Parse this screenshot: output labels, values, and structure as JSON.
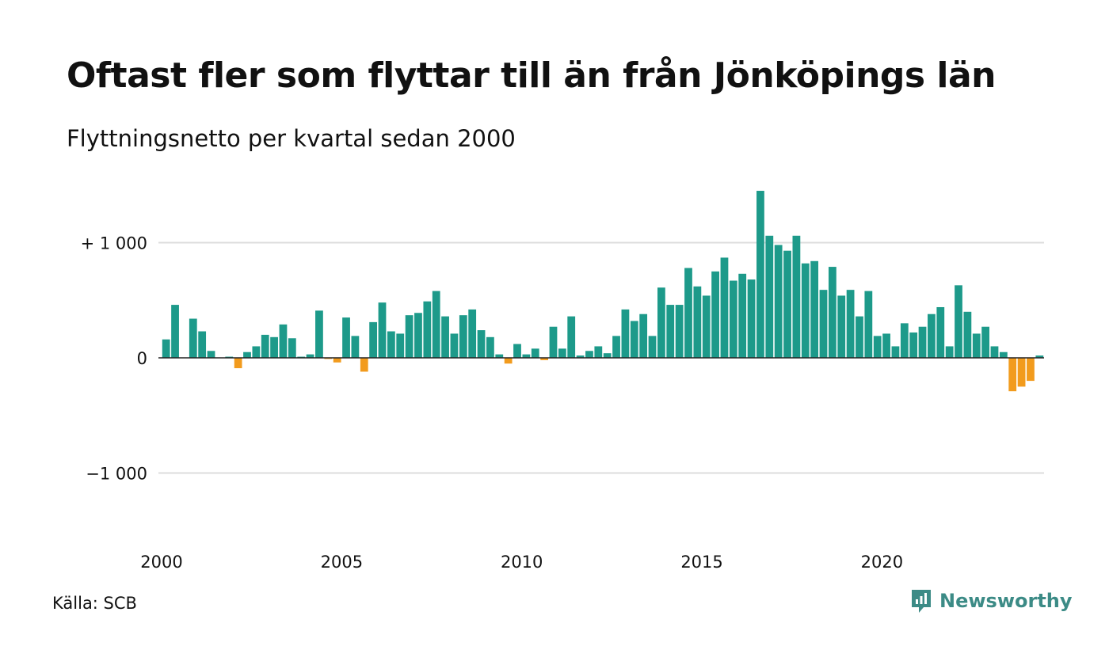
{
  "title": "Oftast fler som flyttar till än från Jönköpings län",
  "subtitle": "Flyttningsnetto per kvartal sedan 2000",
  "source": "Källa: SCB",
  "brand": "Newsworthy",
  "colors": {
    "positive": "#1d9a8a",
    "negative": "#f29b1d",
    "grid": "#dddddd",
    "axis": "#222222",
    "brand": "#3c8b86"
  },
  "chart_data": {
    "type": "bar",
    "x_start": 2000,
    "periods_per_year": 4,
    "ylim": [
      -1600,
      1500
    ],
    "yticks": [
      {
        "value": 1000,
        "label": "+ 1 000"
      },
      {
        "value": 0,
        "label": "0"
      },
      {
        "value": -1000,
        "label": "−1 000"
      }
    ],
    "xticks": [
      {
        "value": 2000,
        "label": "2000"
      },
      {
        "value": 2005,
        "label": "2005"
      },
      {
        "value": 2010,
        "label": "2010"
      },
      {
        "value": 2015,
        "label": "2015"
      },
      {
        "value": 2020,
        "label": "2020"
      }
    ],
    "values": [
      160,
      460,
      0,
      340,
      230,
      60,
      0,
      10,
      -90,
      50,
      100,
      200,
      180,
      290,
      170,
      10,
      30,
      410,
      -10,
      -40,
      350,
      190,
      -120,
      310,
      480,
      230,
      210,
      370,
      390,
      490,
      580,
      360,
      210,
      370,
      420,
      240,
      180,
      30,
      -50,
      120,
      30,
      80,
      -20,
      270,
      80,
      360,
      20,
      60,
      100,
      40,
      190,
      420,
      320,
      380,
      190,
      610,
      460,
      460,
      780,
      620,
      540,
      750,
      870,
      670,
      730,
      680,
      1450,
      1060,
      980,
      930,
      1060,
      820,
      840,
      590,
      790,
      540,
      590,
      360,
      580,
      190,
      210,
      100,
      300,
      220,
      270,
      380,
      440,
      100,
      630,
      400,
      210,
      270,
      100,
      50,
      -290,
      -250,
      -200,
      20
    ]
  }
}
